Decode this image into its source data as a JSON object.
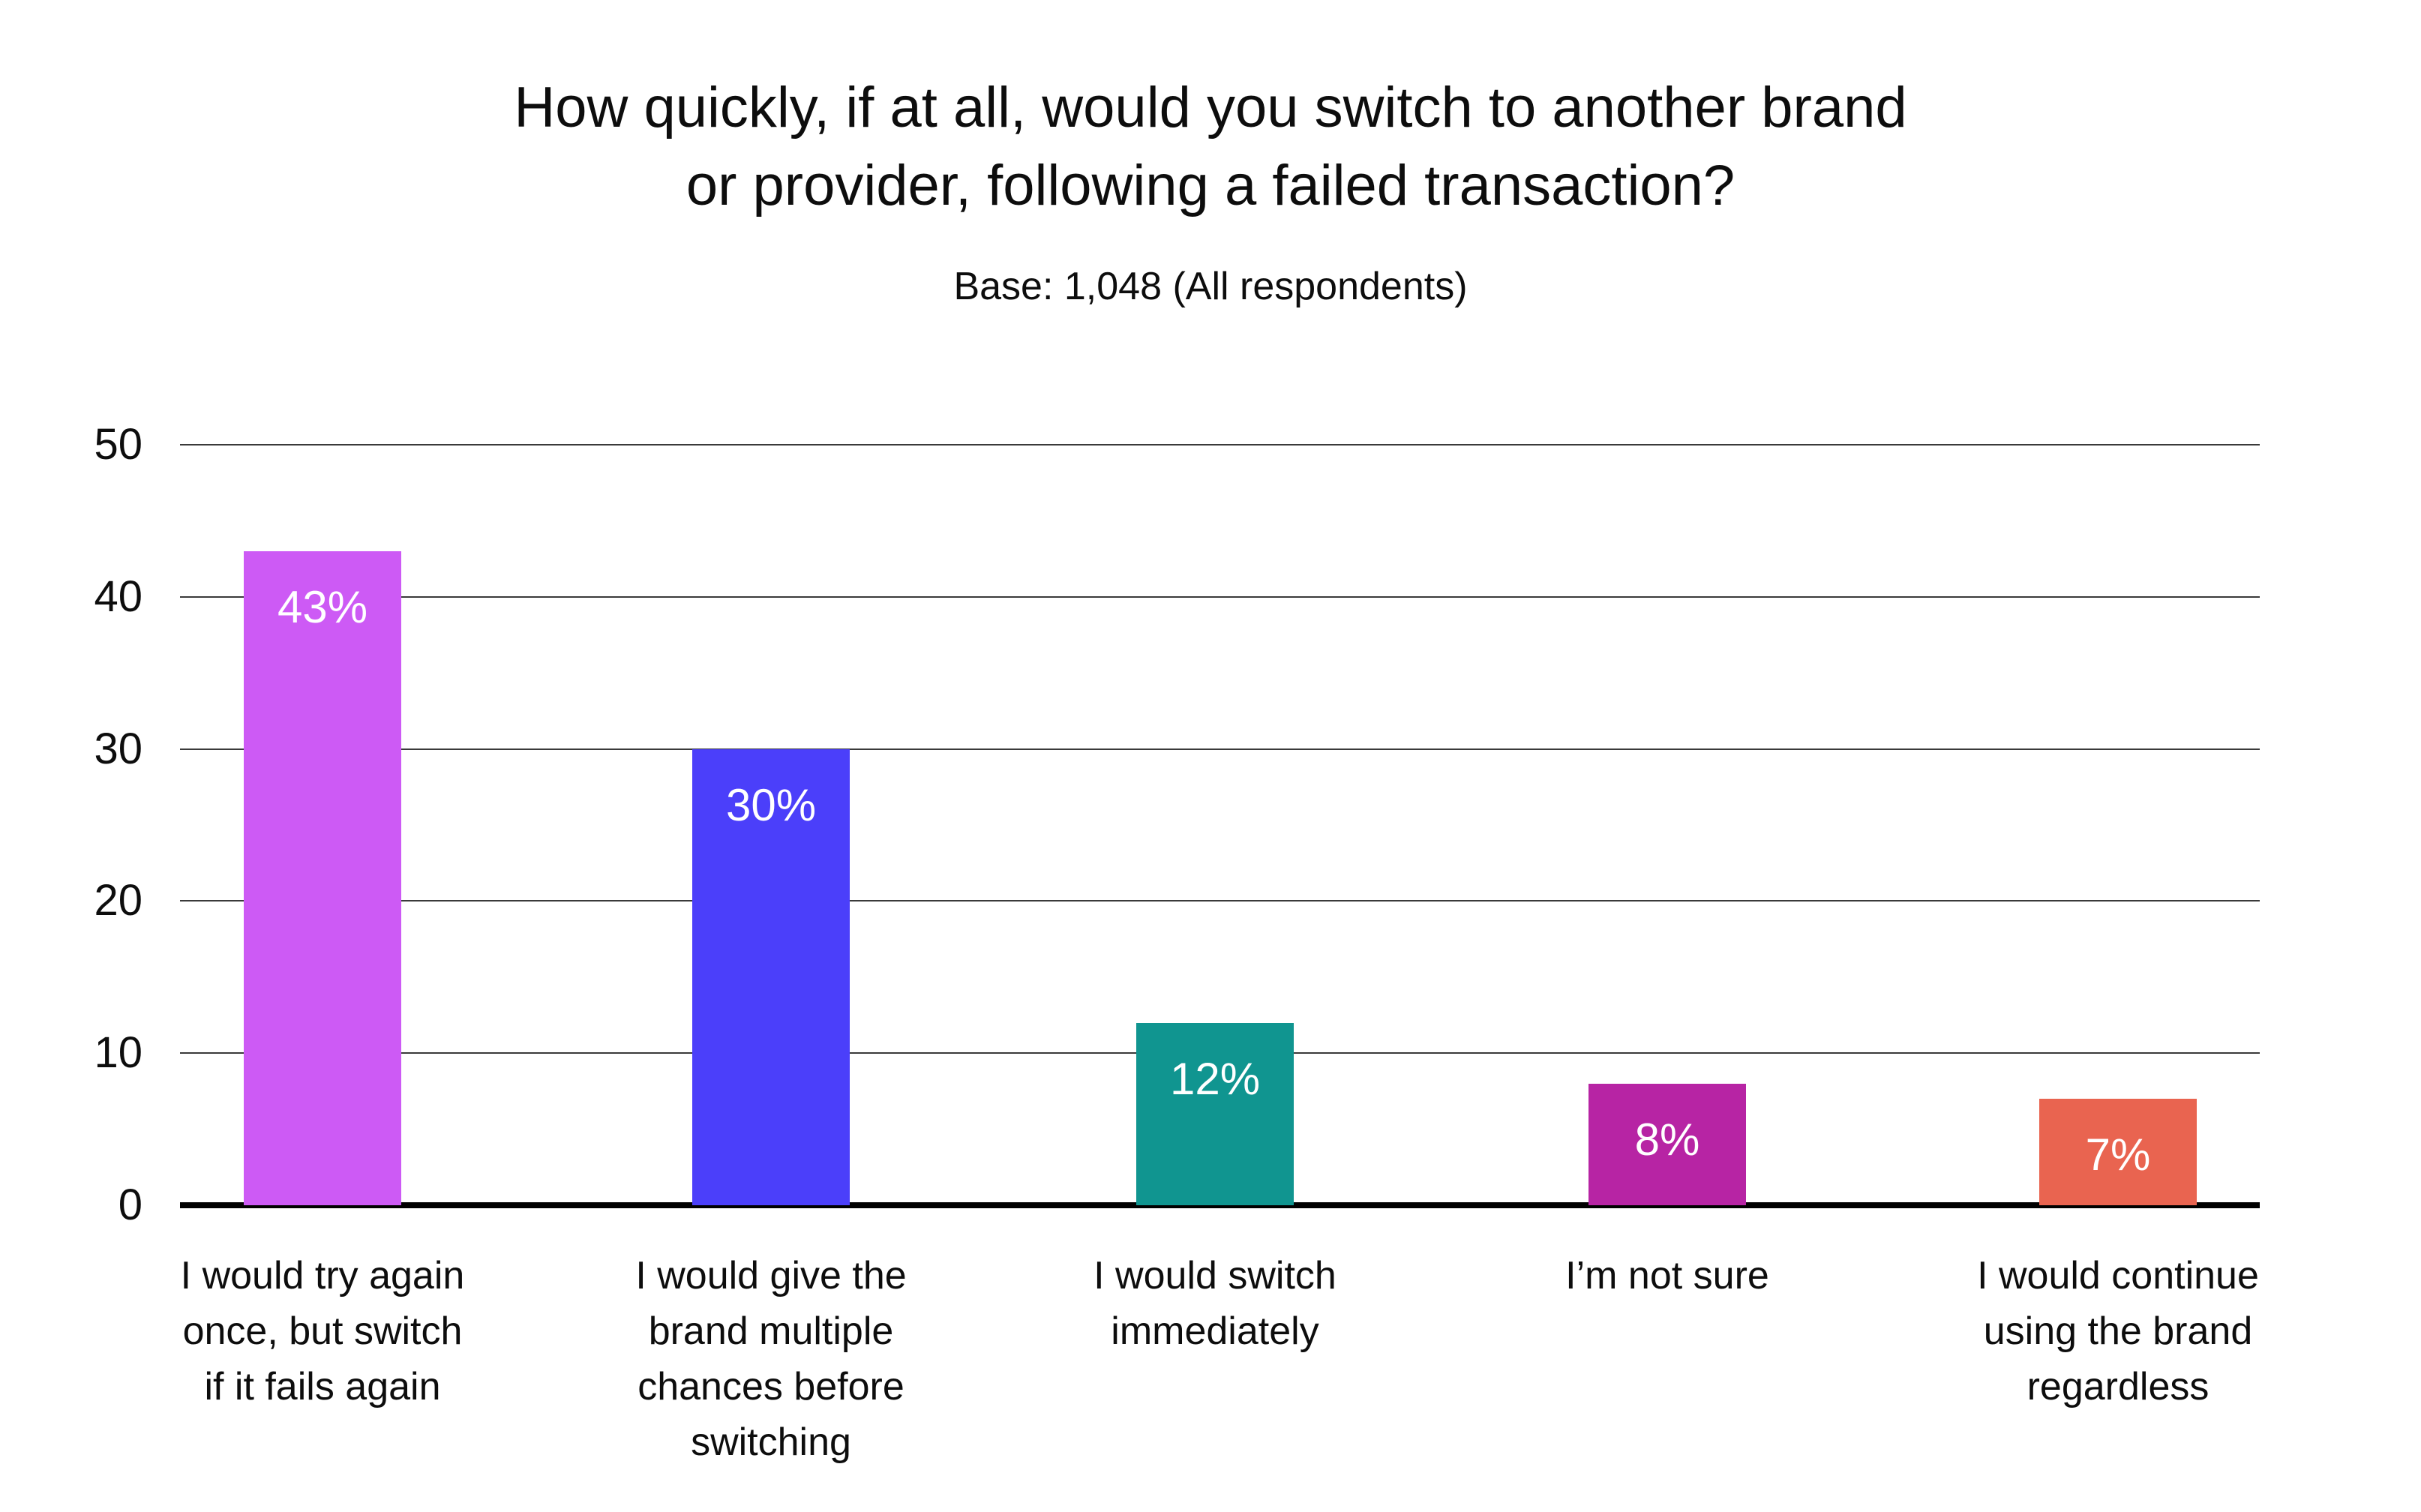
{
  "title": {
    "lines": [
      "How quickly, if at all, would you switch to another brand",
      "or provider, following a failed transaction?"
    ],
    "text": "How quickly, if at all, would you switch to another brand or provider, following a failed transaction?"
  },
  "subtitle": "Base: 1,048 (All respondents)",
  "chart_data": {
    "type": "bar",
    "title": "How quickly, if at all, would you switch to another brand or provider, following a failed transaction?",
    "subtitle": "Base: 1,048 (All respondents)",
    "categories": [
      "I would try again once, but switch if it fails again",
      "I would give the brand multiple chances before switching",
      "I would switch immediately",
      "I’m not sure",
      "I would continue using the brand regardless"
    ],
    "category_lines": [
      [
        "I would try again",
        "once, but switch",
        "if it fails again"
      ],
      [
        "I would give the",
        "brand multiple",
        "chances before",
        "switching"
      ],
      [
        "I would switch",
        "immediately"
      ],
      [
        "I’m not sure"
      ],
      [
        "I would continue",
        "using the brand",
        "regardless"
      ]
    ],
    "values": [
      43,
      30,
      12,
      8,
      7
    ],
    "value_labels": [
      "43%",
      "30%",
      "12%",
      "8%",
      "7%"
    ],
    "colors": [
      "#CD5AF5",
      "#4B3FFA",
      "#109590",
      "#B724A4",
      "#E96450"
    ],
    "xlabel": "",
    "ylabel": "",
    "ylim": [
      0,
      50
    ],
    "yticks": [
      0,
      10,
      20,
      30,
      40,
      50
    ],
    "grid": true,
    "legend": "none",
    "background_color": "#ffffff",
    "text_color": "#0d0d0d",
    "grid_color": "#3a3a3a",
    "axis_color": "#000000",
    "value_label_color": "#ffffff"
  }
}
